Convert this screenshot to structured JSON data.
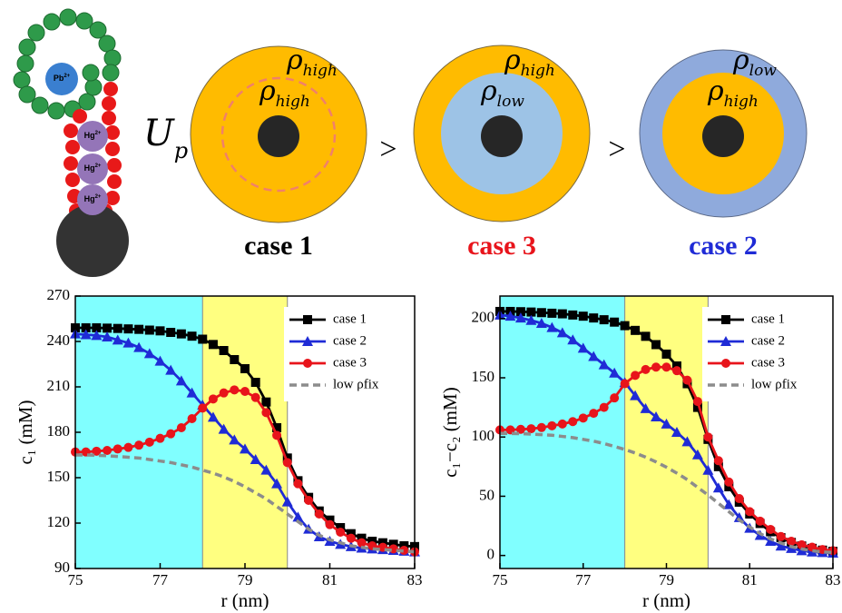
{
  "diagram": {
    "potential": {
      "symbol": "U",
      "sub": "p"
    },
    "comparators": [
      ">",
      ">"
    ],
    "circles": [
      {
        "outer": {
          "symbol": "ρ",
          "sub": "high"
        },
        "inner": {
          "symbol": "ρ",
          "sub": "high"
        },
        "label": "case 1"
      },
      {
        "outer": {
          "symbol": "ρ",
          "sub": "high"
        },
        "inner": {
          "symbol": "ρ",
          "sub": "low"
        },
        "label": "case 3"
      },
      {
        "outer": {
          "symbol": "ρ",
          "sub": "low"
        },
        "inner": {
          "symbol": "ρ",
          "sub": "high"
        },
        "label": "case 2"
      }
    ],
    "ions": [
      {
        "ion": "Pb",
        "charge": "2+"
      },
      {
        "ion": "Hg",
        "charge": "2+"
      },
      {
        "ion": "Hg",
        "charge": "2+"
      },
      {
        "ion": "Hg",
        "charge": "2+"
      }
    ]
  },
  "chart_data": [
    {
      "type": "line",
      "x_label": "r (nm)",
      "y_label": "c₁ (mM)",
      "xlim": [
        75,
        83
      ],
      "xticks": [
        75,
        77,
        79,
        81,
        83
      ],
      "ylim": [
        90,
        270
      ],
      "yticks": [
        90,
        120,
        150,
        180,
        210,
        240,
        270
      ],
      "legend": "upper right",
      "shaded": [
        {
          "x0": 75,
          "x1": 78,
          "color": "#80ffff"
        },
        {
          "x0": 78,
          "x1": 80,
          "color": "#ffff80"
        }
      ],
      "x": [
        75,
        75.25,
        75.5,
        75.75,
        76,
        76.25,
        76.5,
        76.75,
        77,
        77.25,
        77.5,
        77.75,
        78,
        78.25,
        78.5,
        78.75,
        79,
        79.25,
        79.5,
        79.75,
        80,
        80.25,
        80.5,
        80.75,
        81,
        81.25,
        81.5,
        81.75,
        82,
        82.25,
        82.5,
        82.75,
        83
      ],
      "series": [
        {
          "name": "case 1",
          "color": "#000000",
          "marker": "square",
          "dashed": false,
          "values": [
            249,
            249,
            249,
            248.8,
            248.6,
            248.3,
            248,
            247.5,
            247,
            246,
            245,
            243.5,
            241.5,
            238,
            234,
            228,
            222,
            213,
            200,
            183,
            163,
            148,
            137,
            128,
            122,
            117,
            113,
            110,
            108,
            107,
            106,
            105,
            104.5
          ]
        },
        {
          "name": "case 2",
          "color": "#1f2bd6",
          "marker": "triangle",
          "dashed": false,
          "values": [
            245,
            244.5,
            244,
            243,
            241,
            239,
            236,
            232,
            227,
            221,
            214,
            206,
            198,
            190,
            182,
            175,
            169,
            162,
            155,
            146,
            134,
            124,
            116,
            111,
            108,
            106,
            104.5,
            103.5,
            103,
            102.5,
            102,
            101.5,
            101
          ]
        },
        {
          "name": "case 3",
          "color": "#e8141b",
          "marker": "circle",
          "dashed": false,
          "values": [
            167,
            167,
            167.5,
            168,
            169,
            170,
            171.5,
            173.5,
            176,
            179,
            183,
            189,
            196,
            202,
            206,
            208,
            207,
            203,
            193,
            178,
            160,
            146,
            135,
            126,
            119,
            114,
            110,
            107,
            105,
            104,
            103,
            102,
            101
          ]
        },
        {
          "name": "low ρfix",
          "color": "#8c8c8c",
          "marker": "none",
          "dashed": true,
          "values": [
            165,
            165,
            164.8,
            164.5,
            164,
            163.5,
            163,
            162,
            161,
            160,
            158.5,
            157,
            155,
            153,
            150.5,
            147.5,
            144,
            140,
            136,
            131,
            126,
            121,
            116,
            112,
            109,
            107,
            105,
            104,
            103,
            102.5,
            102,
            101.5,
            101
          ]
        }
      ]
    },
    {
      "type": "line",
      "x_label": "r (nm)",
      "y_label": "c₁−c₂ (mM)",
      "xlim": [
        75,
        83
      ],
      "xticks": [
        75,
        77,
        79,
        81,
        83
      ],
      "ylim": [
        -11,
        219
      ],
      "yticks": [
        0,
        50,
        100,
        150,
        200
      ],
      "legend": "upper right",
      "shaded": [
        {
          "x0": 75,
          "x1": 78,
          "color": "#80ffff"
        },
        {
          "x0": 78,
          "x1": 80,
          "color": "#ffff80"
        }
      ],
      "x": [
        75,
        75.25,
        75.5,
        75.75,
        76,
        76.25,
        76.5,
        76.75,
        77,
        77.25,
        77.5,
        77.75,
        78,
        78.25,
        78.5,
        78.75,
        79,
        79.25,
        79.5,
        79.75,
        80,
        80.25,
        80.5,
        80.75,
        81,
        81.25,
        81.5,
        81.75,
        82,
        82.25,
        82.5,
        82.75,
        83
      ],
      "series": [
        {
          "name": "case 1",
          "color": "#000000",
          "marker": "square",
          "dashed": false,
          "values": [
            206,
            206,
            205.8,
            205.5,
            205,
            204.5,
            204,
            203,
            202,
            200.5,
            199,
            197,
            194,
            190,
            185,
            178,
            170,
            160,
            145,
            125,
            98,
            75,
            58,
            45,
            35,
            27,
            20,
            15,
            11,
            8,
            6,
            4.5,
            3.5
          ]
        },
        {
          "name": "case 2",
          "color": "#1f2bd6",
          "marker": "triangle",
          "dashed": false,
          "values": [
            203,
            202,
            200.5,
            198.5,
            196,
            192.5,
            188,
            182,
            175,
            168,
            161,
            154,
            146,
            135,
            124,
            117,
            111,
            104,
            96,
            85,
            72,
            57,
            43,
            32,
            23,
            17,
            12,
            8,
            6,
            4,
            3,
            2.5,
            2
          ]
        },
        {
          "name": "case 3",
          "color": "#e8141b",
          "marker": "circle",
          "dashed": false,
          "values": [
            106,
            106,
            106.5,
            107,
            108,
            109.5,
            111,
            113,
            116,
            120,
            125,
            133,
            145,
            152,
            157,
            159,
            159,
            156,
            148,
            130,
            100,
            80,
            62,
            48,
            37,
            29,
            22,
            16,
            12,
            9,
            7,
            5,
            4
          ]
        },
        {
          "name": "low ρfix",
          "color": "#8c8c8c",
          "marker": "none",
          "dashed": true,
          "values": [
            103,
            103,
            102.8,
            102.5,
            102,
            101.5,
            100.5,
            99.5,
            98,
            96.5,
            94.5,
            92,
            89.5,
            86.5,
            83,
            79,
            74.5,
            69.5,
            64,
            57.5,
            51,
            44,
            37,
            30,
            24,
            18.5,
            14,
            10.5,
            7.5,
            5.5,
            4,
            3,
            2.5
          ]
        }
      ]
    }
  ]
}
